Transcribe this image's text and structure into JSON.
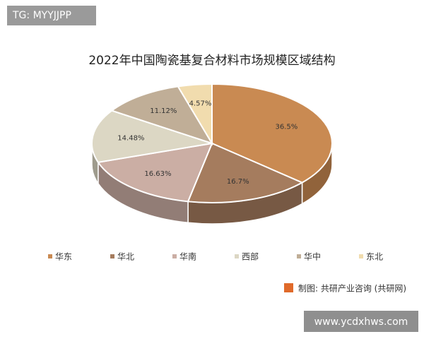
{
  "chart_data": {
    "type": "pie3d",
    "tag": "TG: MYYJJPP",
    "title": "2022年中国陶瓷基复合材料市场规模区域结构",
    "categories": [
      "华东",
      "华北",
      "华南",
      "西部",
      "华中",
      "东北"
    ],
    "values": [
      36.5,
      16.7,
      16.63,
      14.48,
      11.12,
      4.57
    ],
    "value_labels": [
      "36.5%",
      "16.7%",
      "16.63%",
      "14.48%",
      "11.12%",
      "4.57%"
    ],
    "colors": [
      "#c98a52",
      "#a57c5e",
      "#cbaea4",
      "#dcd7c4",
      "#c0ae97",
      "#f1dcae"
    ],
    "source": "制图: 共研产业咨询 (共研网)",
    "website": "www.ycdxhws.com"
  }
}
